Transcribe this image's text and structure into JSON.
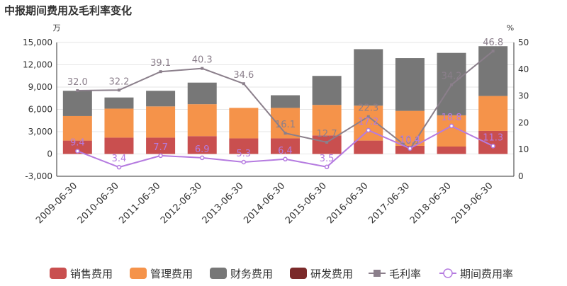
{
  "title": "中报期间费用及毛利率变化",
  "chart_data": {
    "type": "bar",
    "stacked": true,
    "title": "中报期间费用及毛利率变化",
    "left_unit": "万",
    "right_unit": "%",
    "categories": [
      "2009-06-30",
      "2010-06-30",
      "2011-06-30",
      "2012-06-30",
      "2013-06-30",
      "2014-06-30",
      "2015-06-30",
      "2016-06-30",
      "2017-06-30",
      "2018-06-30",
      "2019-06-30"
    ],
    "left_axis": {
      "min": -3000,
      "max": 15000,
      "ticks": [
        -3000,
        0,
        3000,
        6000,
        9000,
        12000,
        15000
      ],
      "tick_labels": [
        "-3,000",
        "0",
        "3,000",
        "6,000",
        "9,000",
        "12,000",
        "15,000"
      ]
    },
    "right_axis": {
      "min": 0,
      "max": 50,
      "ticks": [
        0,
        10,
        20,
        30,
        40,
        50
      ],
      "tick_labels": [
        "0",
        "10",
        "20",
        "30",
        "40",
        "50"
      ]
    },
    "series": [
      {
        "name": "销售费用",
        "kind": "bar",
        "axis": "left",
        "color": "#c94f4f",
        "values": [
          1800,
          2200,
          2200,
          2400,
          2100,
          2100,
          2500,
          1800,
          1100,
          1000,
          3100
        ]
      },
      {
        "name": "管理费用",
        "kind": "bar",
        "axis": "left",
        "color": "#f5934a",
        "values": [
          3300,
          3900,
          4200,
          4300,
          4100,
          4100,
          4100,
          4700,
          4700,
          4200,
          4700
        ]
      },
      {
        "name": "财务费用",
        "kind": "bar",
        "axis": "left",
        "color": "#777777",
        "values": [
          3400,
          1500,
          2100,
          2900,
          0,
          1700,
          3900,
          7600,
          7100,
          8400,
          6700
        ]
      },
      {
        "name": "研发费用",
        "kind": "bar",
        "axis": "left",
        "color": "#7b2a2a",
        "values": [
          0,
          0,
          0,
          0,
          0,
          0,
          0,
          0,
          0,
          0,
          0
        ]
      },
      {
        "name": "毛利率",
        "kind": "line",
        "axis": "right",
        "color": "#8b7f8b",
        "values": [
          32.0,
          32.2,
          39.1,
          40.3,
          34.6,
          16.1,
          12.7,
          22.3,
          10.1,
          34.2,
          46.8
        ],
        "labels": [
          "32.0",
          "32.2",
          "39.1",
          "40.3",
          "34.6",
          "16.1",
          "12.7",
          "22.3",
          "10.1",
          "34.2",
          "46.8"
        ]
      },
      {
        "name": "期间费用率",
        "kind": "line",
        "axis": "right",
        "color": "#b57be0",
        "values": [
          9.4,
          3.4,
          7.7,
          6.9,
          5.3,
          6.4,
          3.5,
          17.2,
          10.4,
          18.8,
          11.3
        ],
        "labels": [
          "9.4",
          "3.4",
          "7.7",
          "6.9",
          "5.3",
          "6.4",
          "3.5",
          "17.2",
          "10.4",
          "18.8",
          "11.3"
        ]
      }
    ],
    "legend": {
      "position": "bottom"
    },
    "grid": true
  }
}
